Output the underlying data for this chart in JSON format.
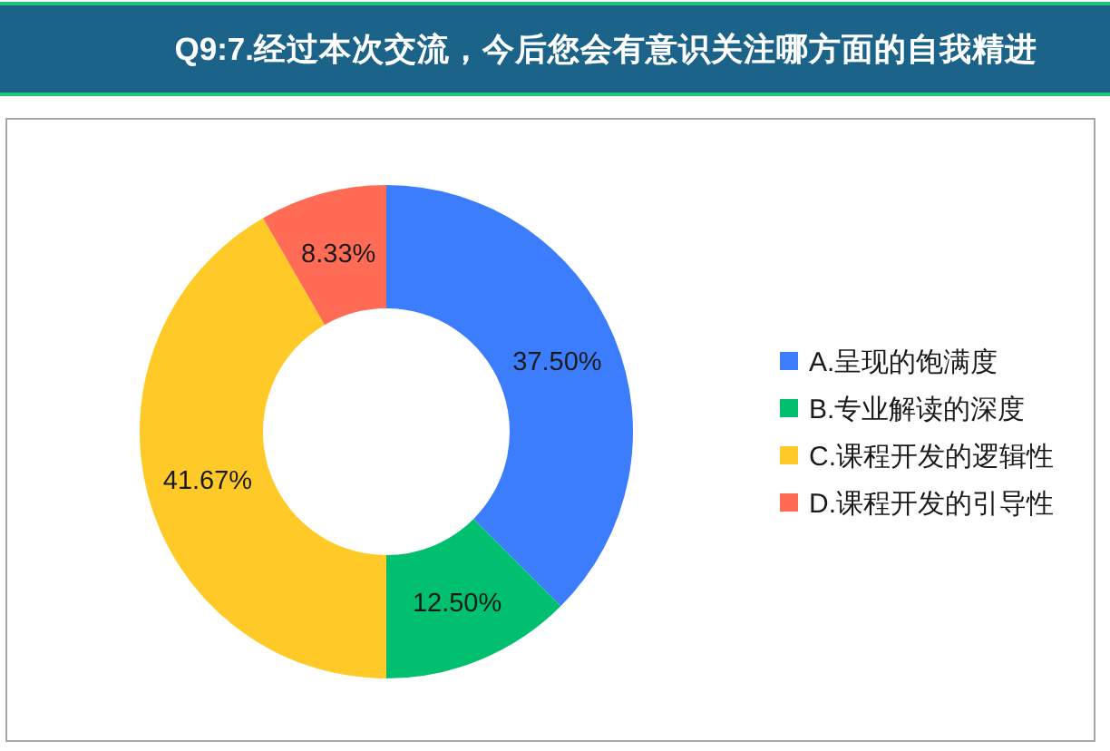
{
  "chart_data": {
    "type": "donut",
    "title": "Q9:7.经过本次交流，今后您会有意识关注哪方面的自我精进",
    "categories": [
      "A.呈现的饱满度",
      "B.专业解读的深度",
      "C.课程开发的逻辑性",
      "D.课程开发的引导性"
    ],
    "values": [
      37.5,
      12.5,
      41.67,
      8.33
    ],
    "colors": [
      "#3b7dfc",
      "#00bf6f",
      "#ffca28",
      "#ff6b55"
    ],
    "value_labels": [
      "37.50%",
      "12.50%",
      "41.67%",
      "8.33%"
    ],
    "legend": "right"
  }
}
